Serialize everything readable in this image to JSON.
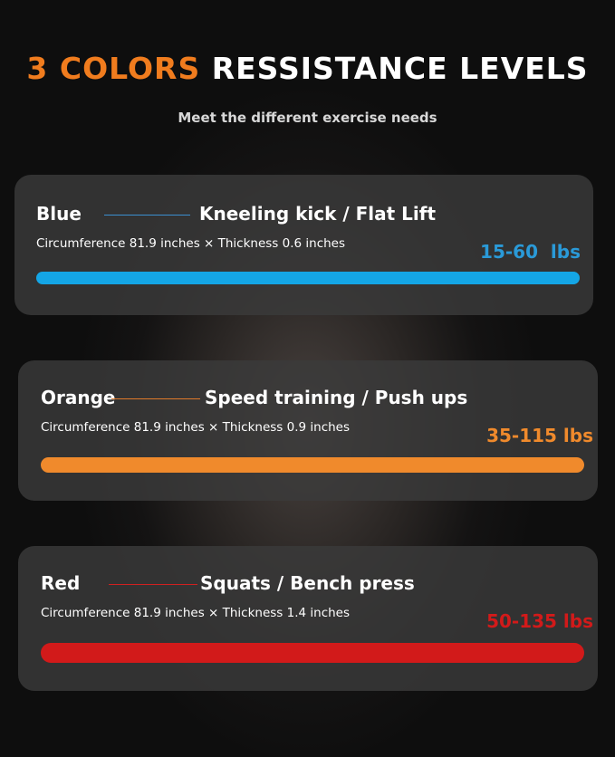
{
  "header": {
    "title_accent": "3 COLORS",
    "title_rest": "RESSISTANCE LEVELS",
    "subtitle": "Meet the different exercise needs"
  },
  "bands": [
    {
      "name": "Blue",
      "use": "Kneeling kick / Flat Lift",
      "spec": "Circumference 81.9 inches × Thickness 0.6 inches",
      "range": "15-60  lbs",
      "color": "#14a6e6"
    },
    {
      "name": "Orange",
      "use": "Speed training / Push ups",
      "spec": "Circumference 81.9 inches × Thickness 0.9 inches",
      "range": "35-115 lbs",
      "color": "#f08a2c"
    },
    {
      "name": "Red",
      "use": "Squats / Bench press",
      "spec": "Circumference 81.9 inches × Thickness 1.4 inches",
      "range": "50-135 lbs",
      "color": "#d21a1a"
    }
  ]
}
